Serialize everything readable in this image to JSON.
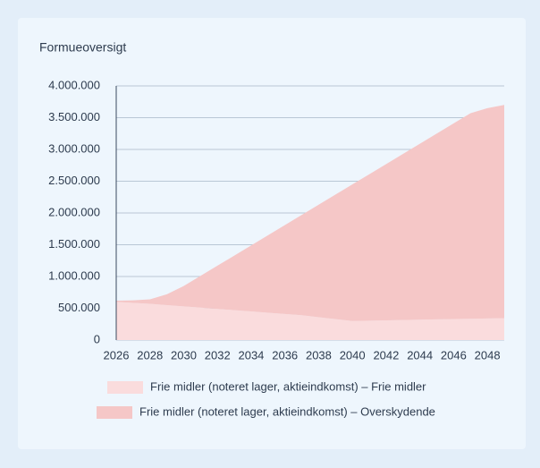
{
  "chart_data": {
    "type": "stacked-area",
    "title": "Formueoversigt",
    "x": [
      2026,
      2027,
      2028,
      2029,
      2030,
      2031,
      2032,
      2033,
      2034,
      2035,
      2036,
      2037,
      2038,
      2039,
      2040,
      2041,
      2042,
      2043,
      2044,
      2045,
      2046,
      2047,
      2048,
      2049
    ],
    "xlim": [
      2026,
      2049
    ],
    "xticks": [
      2026,
      2028,
      2030,
      2032,
      2034,
      2036,
      2038,
      2040,
      2042,
      2044,
      2046,
      2048
    ],
    "ylim": [
      0,
      4000000
    ],
    "yticks": [
      0,
      {
        "value": 500000,
        "label": "500.000"
      },
      {
        "value": 1000000,
        "label": "1.000.000"
      },
      {
        "value": 1500000,
        "label": "1.500.000"
      },
      {
        "value": 2000000,
        "label": "2.000.000"
      },
      {
        "value": 2500000,
        "label": "2.500.000"
      },
      {
        "value": 3000000,
        "label": "3.000.000"
      },
      {
        "value": 3500000,
        "label": "3.500.000"
      },
      {
        "value": 4000000,
        "label": "4.000.000"
      }
    ],
    "grid": true,
    "series": [
      {
        "name": "Frie midler (noteret lager, aktieindkomst) – Frie midler",
        "color": "#fadcdd",
        "values": [
          600000,
          585000,
          570000,
          550000,
          530000,
          510000,
          490000,
          470000,
          450000,
          430000,
          410000,
          390000,
          360000,
          330000,
          300000,
          305000,
          310000,
          315000,
          320000,
          325000,
          330000,
          335000,
          340000,
          345000
        ]
      },
      {
        "name": "Frie midler (noteret lager, aktieindkomst) – Overskydende",
        "color": "#f5c7c7",
        "values": [
          20000,
          40000,
          70000,
          170000,
          320000,
          500000,
          680000,
          860000,
          1040000,
          1220000,
          1400000,
          1580000,
          1770000,
          1960000,
          2150000,
          2305000,
          2460000,
          2615000,
          2770000,
          2925000,
          3080000,
          3235000,
          3310000,
          3355000
        ]
      }
    ]
  }
}
